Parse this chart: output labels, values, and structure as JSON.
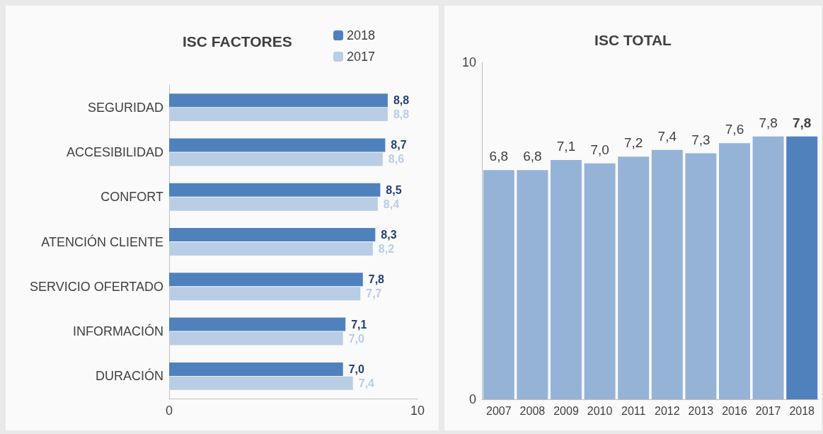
{
  "chart_data": [
    {
      "type": "bar",
      "title": "ISC FACTORES",
      "orientation": "horizontal",
      "categories": [
        "SEGURIDAD",
        "ACCESIBILIDAD",
        "CONFORT",
        "ATENCIÓN CLIENTE",
        "SERVICIO OFERTADO",
        "INFORMACIÓN",
        "DURACIÓN"
      ],
      "series": [
        {
          "name": "2018",
          "color": "#4f81bd",
          "values": [
            8.8,
            8.7,
            8.5,
            8.3,
            7.8,
            7.1,
            7.0
          ],
          "value_labels": [
            "8,8",
            "8,7",
            "8,5",
            "8,3",
            "7,8",
            "7,1",
            "7,0"
          ]
        },
        {
          "name": "2017",
          "color": "#b9cde5",
          "values": [
            8.8,
            8.6,
            8.4,
            8.2,
            7.7,
            7.0,
            7.4
          ],
          "value_labels": [
            "8,8",
            "8,6",
            "8,4",
            "8,2",
            "7,7",
            "7,0",
            "7,4"
          ]
        }
      ],
      "xlim": [
        0,
        10
      ],
      "xticks": [
        0,
        10
      ],
      "grid": false,
      "legend": "top right"
    },
    {
      "type": "bar",
      "title": "ISC TOTAL",
      "categories": [
        "2007",
        "2008",
        "2009",
        "2010",
        "2011",
        "2012",
        "2013",
        "2016",
        "2017",
        "2018"
      ],
      "values": [
        6.8,
        6.8,
        7.1,
        7.0,
        7.2,
        7.4,
        7.3,
        7.6,
        7.8,
        7.8
      ],
      "colors": [
        "#95b3d7",
        "#95b3d7",
        "#95b3d7",
        "#95b3d7",
        "#95b3d7",
        "#95b3d7",
        "#95b3d7",
        "#95b3d7",
        "#95b3d7",
        "#4f81bd"
      ],
      "value_labels": [
        "6,8",
        "6,8",
        "7,1",
        "7,0",
        "7,2",
        "7,4",
        "7,3",
        "7,6",
        "7,8",
        "7,8"
      ],
      "ylim": [
        0,
        10
      ],
      "yticks": [
        0,
        10
      ],
      "grid": false,
      "legend": false
    }
  ]
}
